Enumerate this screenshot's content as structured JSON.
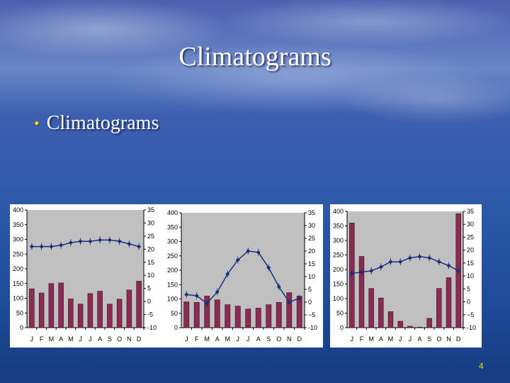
{
  "slide": {
    "title": "Climatograms",
    "bullet": "Climatograms",
    "page_number": "4"
  },
  "colors": {
    "bar": "#8b2a52",
    "bar_edge": "#3a1020",
    "line": "#1c2c7a",
    "plot_bg": "#c0c0c0"
  },
  "chart_data": [
    {
      "type": "bar",
      "categories": [
        "J",
        "F",
        "M",
        "A",
        "M",
        "J",
        "J",
        "A",
        "S",
        "O",
        "N",
        "D"
      ],
      "precip_ylim": [
        0,
        400
      ],
      "precip_ticks": [
        0,
        50,
        100,
        150,
        200,
        250,
        300,
        350,
        400
      ],
      "temp_ylim": [
        -10,
        35
      ],
      "temp_ticks": [
        -10,
        -5,
        0,
        5,
        10,
        15,
        20,
        25,
        30,
        35
      ],
      "temp_tick_labels": [
        "-10",
        "-5",
        "0",
        "5",
        "10",
        "15",
        "20",
        "25",
        "30",
        "35"
      ],
      "series": [
        {
          "values": [
            132,
            118,
            150,
            152,
            98,
            80,
            116,
            124,
            80,
            97,
            128,
            158
          ]
        },
        {
          "values": [
            21,
            21,
            21,
            21.5,
            22.5,
            23,
            23,
            23.5,
            23.5,
            23,
            22,
            21
          ]
        }
      ]
    },
    {
      "type": "bar",
      "categories": [
        "J",
        "F",
        "M",
        "A",
        "M",
        "J",
        "J",
        "A",
        "S",
        "O",
        "N",
        "D"
      ],
      "precip_ylim": [
        0,
        400
      ],
      "precip_ticks": [
        0,
        50,
        100,
        150,
        200,
        250,
        300,
        350,
        400
      ],
      "temp_ylim": [
        -10,
        35
      ],
      "temp_ticks": [
        -10,
        -5,
        0,
        5,
        10,
        15,
        20,
        25,
        30,
        35
      ],
      "temp_tick_labels": [
        "-10",
        "−5",
        "0",
        "5",
        "10",
        "15",
        "20",
        "25",
        "30",
        "35"
      ],
      "series": [
        {
          "values": [
            90,
            88,
            110,
            97,
            80,
            75,
            65,
            68,
            80,
            88,
            122,
            110
          ]
        },
        {
          "values": [
            3,
            2.5,
            -0.5,
            4,
            11,
            16.5,
            20,
            19.5,
            13.5,
            6,
            0,
            1.5
          ]
        }
      ]
    },
    {
      "type": "bar",
      "categories": [
        "J",
        "F",
        "M",
        "A",
        "M",
        "J",
        "J",
        "A",
        "S",
        "O",
        "N",
        "D"
      ],
      "precip_ylim": [
        0,
        400
      ],
      "precip_ticks": [
        0,
        50,
        100,
        150,
        200,
        250,
        300,
        350,
        400
      ],
      "temp_ylim": [
        -10,
        35
      ],
      "temp_ticks": [
        -10,
        -5,
        0,
        5,
        10,
        15,
        20,
        25,
        30,
        35
      ],
      "temp_tick_labels": [
        "-10",
        "−5",
        "0",
        "5",
        "10",
        "15",
        "20",
        "25",
        "30",
        "35"
      ],
      "series": [
        {
          "values": [
            360,
            245,
            135,
            102,
            55,
            22,
            5,
            2,
            32,
            135,
            172,
            392
          ]
        },
        {
          "values": [
            11,
            11.5,
            12,
            13.5,
            15.5,
            15.5,
            17,
            17.5,
            17,
            15.5,
            14,
            12
          ]
        }
      ]
    }
  ]
}
